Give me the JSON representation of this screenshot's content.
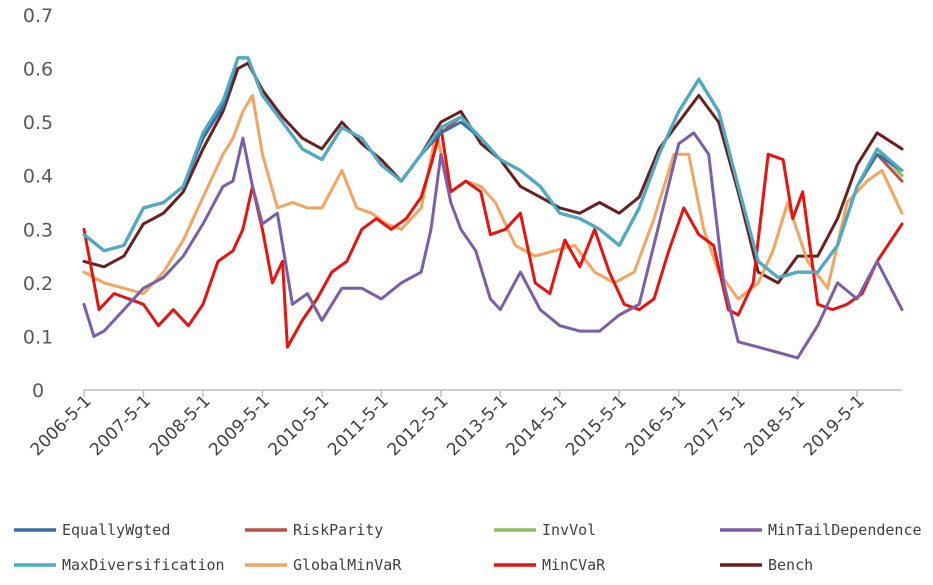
{
  "chart_data": {
    "type": "line",
    "title": "",
    "xlabel": "",
    "ylabel": "",
    "ylim": [
      0,
      0.7
    ],
    "yticks": [
      "0",
      "0.1",
      "0.2",
      "0.3",
      "0.4",
      "0.5",
      "0.6",
      "0.7"
    ],
    "xticks": [
      "2006-5-1",
      "2007-5-1",
      "2008-5-1",
      "2009-5-1",
      "2010-5-1",
      "2011-5-1",
      "2012-5-1",
      "2013-5-1",
      "2014-5-1",
      "2015-5-1",
      "2016-5-1",
      "2017-5-1",
      "2018-5-1",
      "2019-5-1"
    ],
    "xrange": [
      "2006-5-1",
      "2020-2-1"
    ],
    "grid": false,
    "legend_position": "bottom",
    "series": [
      {
        "name": "EquallyWgted",
        "color": "#3a6ea5",
        "x": [
          "2006-5-1",
          "2006-9-1",
          "2007-1-1",
          "2007-5-1",
          "2007-9-1",
          "2008-1-1",
          "2008-5-1",
          "2008-9-1",
          "2008-12-1",
          "2009-2-1",
          "2009-5-1",
          "2009-9-1",
          "2010-1-1",
          "2010-5-1",
          "2010-9-1",
          "2011-1-1",
          "2011-5-1",
          "2011-9-1",
          "2012-1-1",
          "2012-5-1",
          "2012-9-1",
          "2013-1-1",
          "2013-5-1",
          "2013-9-1",
          "2014-1-1",
          "2014-5-1",
          "2014-9-1",
          "2015-1-1",
          "2015-5-1",
          "2015-9-1",
          "2016-1-1",
          "2016-5-1",
          "2016-9-1",
          "2017-1-1",
          "2017-5-1",
          "2017-9-1",
          "2018-1-1",
          "2018-5-1",
          "2018-9-1",
          "2019-1-1",
          "2019-5-1",
          "2019-9-1",
          "2020-2-1"
        ],
        "y": [
          0.29,
          0.26,
          0.27,
          0.34,
          0.35,
          0.38,
          0.47,
          0.53,
          0.62,
          0.62,
          0.55,
          0.5,
          0.45,
          0.43,
          0.49,
          0.47,
          0.42,
          0.39,
          0.44,
          0.48,
          0.5,
          0.47,
          0.43,
          0.41,
          0.38,
          0.33,
          0.32,
          0.3,
          0.27,
          0.34,
          0.44,
          0.52,
          0.58,
          0.52,
          0.38,
          0.24,
          0.21,
          0.22,
          0.22,
          0.27,
          0.38,
          0.44,
          0.41
        ]
      },
      {
        "name": "RiskParity",
        "color": "#b8504a",
        "x": [
          "2006-5-1",
          "2006-9-1",
          "2007-1-1",
          "2007-5-1",
          "2007-9-1",
          "2008-1-1",
          "2008-5-1",
          "2008-9-1",
          "2008-12-1",
          "2009-2-1",
          "2009-5-1",
          "2009-9-1",
          "2010-1-1",
          "2010-5-1",
          "2010-9-1",
          "2011-1-1",
          "2011-5-1",
          "2011-9-1",
          "2012-1-1",
          "2012-5-1",
          "2012-9-1",
          "2013-1-1",
          "2013-5-1",
          "2013-9-1",
          "2014-1-1",
          "2014-5-1",
          "2014-9-1",
          "2015-1-1",
          "2015-5-1",
          "2015-9-1",
          "2016-1-1",
          "2016-5-1",
          "2016-9-1",
          "2017-1-1",
          "2017-5-1",
          "2017-9-1",
          "2018-1-1",
          "2018-5-1",
          "2018-9-1",
          "2019-1-1",
          "2019-5-1",
          "2019-9-1",
          "2020-2-1"
        ],
        "y": [
          0.29,
          0.26,
          0.27,
          0.34,
          0.35,
          0.38,
          0.47,
          0.53,
          0.62,
          0.62,
          0.55,
          0.5,
          0.45,
          0.43,
          0.49,
          0.47,
          0.42,
          0.39,
          0.44,
          0.48,
          0.51,
          0.47,
          0.43,
          0.41,
          0.38,
          0.33,
          0.32,
          0.3,
          0.27,
          0.34,
          0.44,
          0.52,
          0.58,
          0.52,
          0.38,
          0.24,
          0.21,
          0.22,
          0.22,
          0.27,
          0.38,
          0.44,
          0.39
        ]
      },
      {
        "name": "InvVol",
        "color": "#8fbc5a",
        "x": [
          "2006-5-1",
          "2006-9-1",
          "2007-1-1",
          "2007-5-1",
          "2007-9-1",
          "2008-1-1",
          "2008-5-1",
          "2008-9-1",
          "2008-12-1",
          "2009-2-1",
          "2009-5-1",
          "2009-9-1",
          "2010-1-1",
          "2010-5-1",
          "2010-9-1",
          "2011-1-1",
          "2011-5-1",
          "2011-9-1",
          "2012-1-1",
          "2012-5-1",
          "2012-9-1",
          "2013-1-1",
          "2013-5-1",
          "2013-9-1",
          "2014-1-1",
          "2014-5-1",
          "2014-9-1",
          "2015-1-1",
          "2015-5-1",
          "2015-9-1",
          "2016-1-1",
          "2016-5-1",
          "2016-9-1",
          "2017-1-1",
          "2017-5-1",
          "2017-9-1",
          "2018-1-1",
          "2018-5-1",
          "2018-9-1",
          "2019-1-1",
          "2019-5-1",
          "2019-9-1",
          "2020-2-1"
        ],
        "y": [
          0.29,
          0.26,
          0.27,
          0.34,
          0.35,
          0.38,
          0.48,
          0.54,
          0.62,
          0.62,
          0.55,
          0.5,
          0.45,
          0.43,
          0.49,
          0.47,
          0.42,
          0.39,
          0.44,
          0.49,
          0.51,
          0.47,
          0.43,
          0.41,
          0.38,
          0.33,
          0.32,
          0.3,
          0.27,
          0.34,
          0.44,
          0.52,
          0.58,
          0.52,
          0.38,
          0.24,
          0.21,
          0.22,
          0.22,
          0.27,
          0.38,
          0.45,
          0.4
        ]
      },
      {
        "name": "MinTailDependence",
        "color": "#7b5ea7",
        "x": [
          "2006-5-1",
          "2006-7-1",
          "2006-9-1",
          "2007-1-1",
          "2007-5-1",
          "2007-9-1",
          "2008-1-1",
          "2008-5-1",
          "2008-9-1",
          "2008-11-1",
          "2009-1-1",
          "2009-3-1",
          "2009-5-1",
          "2009-8-1",
          "2009-11-1",
          "2010-2-1",
          "2010-5-1",
          "2010-9-1",
          "2011-1-1",
          "2011-5-1",
          "2011-9-1",
          "2012-1-1",
          "2012-3-1",
          "2012-5-1",
          "2012-7-1",
          "2012-9-1",
          "2012-12-1",
          "2013-3-1",
          "2013-5-1",
          "2013-9-1",
          "2014-1-1",
          "2014-5-1",
          "2014-9-1",
          "2015-1-1",
          "2015-5-1",
          "2015-9-1",
          "2016-1-1",
          "2016-5-1",
          "2016-8-1",
          "2016-11-1",
          "2017-2-1",
          "2017-5-1",
          "2017-9-1",
          "2018-1-1",
          "2018-5-1",
          "2018-9-1",
          "2019-1-1",
          "2019-5-1",
          "2019-9-1",
          "2020-2-1"
        ],
        "y": [
          0.16,
          0.1,
          0.11,
          0.15,
          0.19,
          0.21,
          0.25,
          0.31,
          0.38,
          0.39,
          0.47,
          0.38,
          0.31,
          0.33,
          0.16,
          0.18,
          0.13,
          0.19,
          0.19,
          0.17,
          0.2,
          0.22,
          0.3,
          0.44,
          0.35,
          0.3,
          0.26,
          0.17,
          0.15,
          0.22,
          0.15,
          0.12,
          0.11,
          0.11,
          0.14,
          0.16,
          0.31,
          0.46,
          0.48,
          0.44,
          0.2,
          0.09,
          0.08,
          0.07,
          0.06,
          0.12,
          0.2,
          0.17,
          0.24,
          0.15
        ]
      },
      {
        "name": "MaxDiversification",
        "color": "#4bacc6",
        "x": [
          "2006-5-1",
          "2006-9-1",
          "2007-1-1",
          "2007-5-1",
          "2007-9-1",
          "2008-1-1",
          "2008-5-1",
          "2008-9-1",
          "2008-12-1",
          "2009-2-1",
          "2009-5-1",
          "2009-9-1",
          "2010-1-1",
          "2010-5-1",
          "2010-9-1",
          "2011-1-1",
          "2011-5-1",
          "2011-9-1",
          "2012-1-1",
          "2012-5-1",
          "2012-9-1",
          "2013-1-1",
          "2013-5-1",
          "2013-9-1",
          "2014-1-1",
          "2014-5-1",
          "2014-9-1",
          "2015-1-1",
          "2015-5-1",
          "2015-9-1",
          "2016-1-1",
          "2016-5-1",
          "2016-9-1",
          "2017-1-1",
          "2017-5-1",
          "2017-9-1",
          "2018-1-1",
          "2018-5-1",
          "2018-9-1",
          "2019-1-1",
          "2019-5-1",
          "2019-9-1",
          "2020-2-1"
        ],
        "y": [
          0.29,
          0.26,
          0.27,
          0.34,
          0.35,
          0.38,
          0.48,
          0.54,
          0.62,
          0.62,
          0.55,
          0.5,
          0.45,
          0.43,
          0.49,
          0.47,
          0.42,
          0.39,
          0.44,
          0.49,
          0.51,
          0.47,
          0.43,
          0.41,
          0.38,
          0.33,
          0.32,
          0.3,
          0.27,
          0.34,
          0.44,
          0.52,
          0.58,
          0.52,
          0.38,
          0.24,
          0.21,
          0.22,
          0.22,
          0.27,
          0.38,
          0.45,
          0.41
        ]
      },
      {
        "name": "GlobalMinVaR",
        "color": "#f4a460",
        "x": [
          "2006-5-1",
          "2006-9-1",
          "2007-1-1",
          "2007-5-1",
          "2007-9-1",
          "2008-1-1",
          "2008-5-1",
          "2008-9-1",
          "2008-11-1",
          "2009-1-1",
          "2009-3-1",
          "2009-5-1",
          "2009-8-1",
          "2009-11-1",
          "2010-2-1",
          "2010-5-1",
          "2010-9-1",
          "2010-12-1",
          "2011-3-1",
          "2011-6-1",
          "2011-9-1",
          "2012-1-1",
          "2012-4-1",
          "2012-7-1",
          "2012-10-1",
          "2013-1-1",
          "2013-4-1",
          "2013-8-1",
          "2013-12-1",
          "2014-4-1",
          "2014-8-1",
          "2014-12-1",
          "2015-4-1",
          "2015-8-1",
          "2015-12-1",
          "2016-4-1",
          "2016-7-1",
          "2016-10-1",
          "2017-1-1",
          "2017-5-1",
          "2017-9-1",
          "2017-12-1",
          "2018-3-1",
          "2018-7-1",
          "2018-11-1",
          "2019-3-1",
          "2019-7-1",
          "2019-10-1",
          "2020-2-1"
        ],
        "y": [
          0.22,
          0.2,
          0.19,
          0.18,
          0.22,
          0.28,
          0.36,
          0.44,
          0.47,
          0.52,
          0.55,
          0.44,
          0.34,
          0.35,
          0.34,
          0.34,
          0.41,
          0.34,
          0.33,
          0.31,
          0.3,
          0.34,
          0.48,
          0.37,
          0.39,
          0.38,
          0.35,
          0.27,
          0.25,
          0.26,
          0.27,
          0.22,
          0.2,
          0.22,
          0.32,
          0.44,
          0.44,
          0.3,
          0.22,
          0.17,
          0.2,
          0.26,
          0.35,
          0.24,
          0.19,
          0.35,
          0.39,
          0.41,
          0.33
        ]
      },
      {
        "name": "MinCVaR",
        "color": "#e8120f",
        "x": [
          "2006-5-1",
          "2006-8-1",
          "2006-11-1",
          "2007-2-1",
          "2007-5-1",
          "2007-8-1",
          "2007-11-1",
          "2008-2-1",
          "2008-5-1",
          "2008-8-1",
          "2008-11-1",
          "2009-1-1",
          "2009-3-1",
          "2009-5-1",
          "2009-7-1",
          "2009-9-1",
          "2009-10-1",
          "2010-1-1",
          "2010-4-1",
          "2010-7-1",
          "2010-10-1",
          "2011-1-1",
          "2011-4-1",
          "2011-7-1",
          "2011-10-1",
          "2012-1-1",
          "2012-3-1",
          "2012-5-1",
          "2012-7-1",
          "2012-10-1",
          "2013-1-1",
          "2013-3-1",
          "2013-6-1",
          "2013-9-1",
          "2013-12-1",
          "2014-3-1",
          "2014-6-1",
          "2014-9-1",
          "2014-12-1",
          "2015-3-1",
          "2015-6-1",
          "2015-9-1",
          "2015-12-1",
          "2016-3-1",
          "2016-6-1",
          "2016-9-1",
          "2016-12-1",
          "2017-3-1",
          "2017-5-1",
          "2017-8-1",
          "2017-11-1",
          "2018-2-1",
          "2018-4-1",
          "2018-6-1",
          "2018-9-1",
          "2018-12-1",
          "2019-3-1",
          "2019-6-1",
          "2019-9-1",
          "2020-2-1"
        ],
        "y": [
          0.3,
          0.15,
          0.18,
          0.17,
          0.16,
          0.12,
          0.15,
          0.12,
          0.16,
          0.24,
          0.26,
          0.3,
          0.38,
          0.3,
          0.2,
          0.24,
          0.08,
          0.13,
          0.17,
          0.22,
          0.24,
          0.3,
          0.32,
          0.3,
          0.32,
          0.36,
          0.42,
          0.49,
          0.37,
          0.39,
          0.37,
          0.29,
          0.3,
          0.33,
          0.2,
          0.18,
          0.28,
          0.23,
          0.3,
          0.22,
          0.16,
          0.15,
          0.17,
          0.26,
          0.34,
          0.29,
          0.27,
          0.15,
          0.14,
          0.2,
          0.44,
          0.43,
          0.32,
          0.37,
          0.16,
          0.15,
          0.16,
          0.18,
          0.24,
          0.31
        ]
      },
      {
        "name": "Bench",
        "color": "#6b1f1f",
        "x": [
          "2006-5-1",
          "2006-9-1",
          "2007-1-1",
          "2007-5-1",
          "2007-9-1",
          "2008-1-1",
          "2008-5-1",
          "2008-9-1",
          "2008-12-1",
          "2009-2-1",
          "2009-5-1",
          "2009-9-1",
          "2010-1-1",
          "2010-5-1",
          "2010-9-1",
          "2011-1-1",
          "2011-5-1",
          "2011-9-1",
          "2012-1-1",
          "2012-5-1",
          "2012-9-1",
          "2013-1-1",
          "2013-5-1",
          "2013-9-1",
          "2014-1-1",
          "2014-5-1",
          "2014-9-1",
          "2015-1-1",
          "2015-5-1",
          "2015-9-1",
          "2016-1-1",
          "2016-5-1",
          "2016-9-1",
          "2017-1-1",
          "2017-5-1",
          "2017-9-1",
          "2018-1-1",
          "2018-5-1",
          "2018-9-1",
          "2019-1-1",
          "2019-5-1",
          "2019-9-1",
          "2020-2-1"
        ],
        "y": [
          0.24,
          0.23,
          0.25,
          0.31,
          0.33,
          0.37,
          0.45,
          0.52,
          0.6,
          0.61,
          0.56,
          0.51,
          0.47,
          0.45,
          0.5,
          0.46,
          0.43,
          0.39,
          0.44,
          0.5,
          0.52,
          0.46,
          0.43,
          0.38,
          0.36,
          0.34,
          0.33,
          0.35,
          0.33,
          0.36,
          0.45,
          0.5,
          0.55,
          0.5,
          0.37,
          0.22,
          0.2,
          0.25,
          0.25,
          0.32,
          0.42,
          0.48,
          0.45
        ]
      }
    ]
  }
}
